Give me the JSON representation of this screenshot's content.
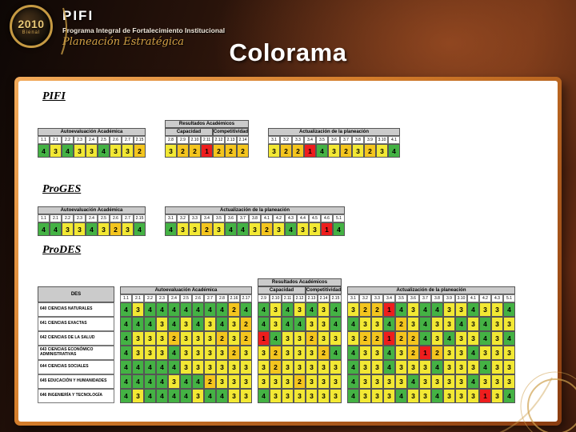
{
  "header": {
    "logo_year": "2010",
    "logo_sub": "Bienal",
    "brand": "PIFI",
    "brand_sub": "Programa Integral de Fortalecimiento Institucional",
    "tagline": "Planeación Estratégica",
    "title": "Colorama"
  },
  "legend_colors": {
    "4": "#44b244",
    "3": "#f2e834",
    "2": "#f4c51e",
    "1": "#ee1d1d"
  },
  "sections": [
    {
      "id": "pifi",
      "label": "PIFI",
      "row_label_header": null,
      "row_labels": null,
      "blocks": [
        {
          "title": "Autoevaluación Académica",
          "cols": [
            "1.1",
            "2.1",
            "2.2",
            "2.3",
            "2.4",
            "2.5",
            "2.6",
            "2.7",
            "2.15"
          ],
          "rows": [
            [
              4,
              3,
              4,
              3,
              3,
              4,
              3,
              3,
              2
            ]
          ]
        },
        {
          "super": "Resultados Académicos",
          "subblocks": [
            {
              "title": "Capacidad",
              "cols": [
                "2.8",
                "2.9",
                "2.10",
                "2.11"
              ],
              "rows": [
                [
                  3,
                  2,
                  2,
                  1
                ]
              ]
            },
            {
              "title": "Competitividad",
              "cols": [
                "2.12",
                "2.13",
                "2.14"
              ],
              "rows": [
                [
                  2,
                  2,
                  2
                ]
              ]
            }
          ]
        },
        {
          "title": "Actualización de la planeación",
          "cols": [
            "3.1",
            "3.2",
            "3.3",
            "3.4",
            "3.5",
            "3.6",
            "3.7",
            "3.8",
            "3.9",
            "3.10",
            "4.1"
          ],
          "rows": [
            [
              3,
              2,
              2,
              1,
              4,
              3,
              2,
              3,
              2,
              3,
              4
            ]
          ]
        }
      ]
    },
    {
      "id": "proges",
      "label": "ProGES",
      "row_label_header": null,
      "row_labels": null,
      "blocks": [
        {
          "title": "Autoevaluación Académica",
          "cols": [
            "1.1",
            "2.1",
            "2.2",
            "2.3",
            "2.4",
            "2.5",
            "2.6",
            "2.7",
            "2.15"
          ],
          "rows": [
            [
              4,
              4,
              3,
              3,
              4,
              3,
              2,
              3,
              4
            ]
          ]
        },
        {
          "title": "Actualización de la planeación",
          "cols": [
            "3.1",
            "3.2",
            "3.3",
            "3.4",
            "3.5",
            "3.6",
            "3.7",
            "3.8",
            "4.1",
            "4.2",
            "4.3",
            "4.4",
            "4.5",
            "4.6",
            "5.1"
          ],
          "rows": [
            [
              4,
              3,
              3,
              2,
              3,
              4,
              4,
              3,
              2,
              3,
              4,
              3,
              3,
              1,
              4
            ]
          ]
        }
      ]
    },
    {
      "id": "prodes",
      "label": "ProDES",
      "row_label_header": "DES",
      "row_labels": [
        "640 CIENCIAS NATURALES",
        "641 CIENCIAS EXACTAS",
        "642 CIENCIAS DE LA SALUD",
        "643 CIENCIAS ECONÓMICO ADMINISTRATIVAS",
        "644 CIENCIAS SOCIALES",
        "645 EDUCACIÓN Y HUMANIDADES",
        "646 INGENIERÍA Y TECNOLOGÍA"
      ],
      "blocks": [
        {
          "title": "Autoevaluación Académica",
          "cols": [
            "1.1",
            "2.1",
            "2.2",
            "2.3",
            "2.4",
            "2.5",
            "2.6",
            "2.7",
            "2.8",
            "2.16",
            "2.17"
          ],
          "rows": [
            [
              4,
              3,
              4,
              4,
              4,
              4,
              4,
              4,
              4,
              2,
              4
            ],
            [
              4,
              4,
              4,
              3,
              4,
              3,
              4,
              3,
              4,
              3,
              2
            ],
            [
              4,
              3,
              3,
              3,
              2,
              3,
              3,
              3,
              2,
              3,
              2
            ],
            [
              4,
              3,
              3,
              3,
              4,
              3,
              3,
              3,
              3,
              2,
              3
            ],
            [
              4,
              4,
              4,
              4,
              4,
              3,
              3,
              3,
              3,
              3,
              3
            ],
            [
              4,
              4,
              4,
              4,
              3,
              4,
              4,
              2,
              3,
              3,
              3
            ],
            [
              4,
              3,
              4,
              4,
              4,
              4,
              3,
              4,
              4,
              3,
              3
            ]
          ]
        },
        {
          "super": "Resultados Académicos",
          "subblocks": [
            {
              "title": "Capacidad",
              "cols": [
                "2.9",
                "2.10",
                "2.11",
                "2.12"
              ],
              "rows": [
                [
                  4,
                  3,
                  4,
                  3
                ],
                [
                  4,
                  3,
                  4,
                  4
                ],
                [
                  1,
                  4,
                  3,
                  3
                ],
                [
                  3,
                  2,
                  3,
                  3
                ],
                [
                  3,
                  2,
                  3,
                  3
                ],
                [
                  3,
                  3,
                  3,
                  2
                ],
                [
                  4,
                  3,
                  3,
                  3
                ]
              ]
            },
            {
              "title": "Competitividad",
              "cols": [
                "2.13",
                "2.14",
                "2.15"
              ],
              "rows": [
                [
                  4,
                  3,
                  4
                ],
                [
                  3,
                  3,
                  4
                ],
                [
                  2,
                  3,
                  3
                ],
                [
                  3,
                  2,
                  4
                ],
                [
                  3,
                  3,
                  3
                ],
                [
                  3,
                  3,
                  3
                ],
                [
                  3,
                  3,
                  3
                ]
              ]
            }
          ]
        },
        {
          "title": "Actualización de la planeación",
          "cols": [
            "3.1",
            "3.2",
            "3.3",
            "3.4",
            "3.5",
            "3.6",
            "3.7",
            "3.8",
            "3.9",
            "3.10",
            "4.1",
            "4.2",
            "4.3",
            "5.1"
          ],
          "rows": [
            [
              3,
              2,
              2,
              1,
              4,
              3,
              4,
              4,
              3,
              3,
              4,
              3,
              3,
              4
            ],
            [
              4,
              3,
              3,
              4,
              2,
              3,
              4,
              3,
              3,
              4,
              3,
              4,
              3,
              3
            ],
            [
              3,
              2,
              2,
              1,
              2,
              2,
              4,
              3,
              4,
              3,
              3,
              4,
              3,
              4
            ],
            [
              4,
              3,
              3,
              4,
              3,
              2,
              1,
              2,
              3,
              3,
              4,
              3,
              3,
              3
            ],
            [
              4,
              3,
              3,
              4,
              3,
              3,
              3,
              4,
              3,
              3,
              3,
              4,
              3,
              3
            ],
            [
              4,
              3,
              3,
              3,
              3,
              4,
              3,
              3,
              3,
              3,
              4,
              3,
              3,
              3
            ],
            [
              4,
              3,
              3,
              3,
              4,
              3,
              3,
              4,
              3,
              3,
              3,
              1,
              3,
              4
            ]
          ]
        }
      ]
    }
  ]
}
